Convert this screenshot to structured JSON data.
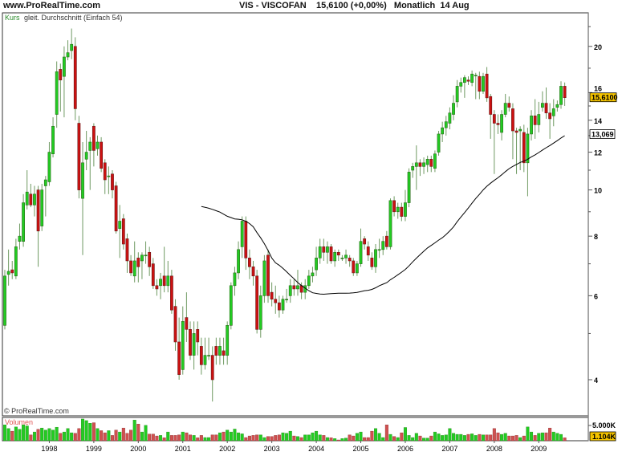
{
  "header": {
    "site": "www.ProRealTime.com",
    "instrument": "VIS - VISCOFAN",
    "price_change": "15,6100 (+0,00%)",
    "period": "Monatlich",
    "date": "14 Aug"
  },
  "legend": {
    "series": "Kurs",
    "indicator": "gleit. Durchschnitt (Einfach 54)"
  },
  "copyright": "© ProRealTime.com",
  "volume_panel": {
    "title": "Volumen",
    "scale_label": "5.000K",
    "last_badge": "1.104K"
  },
  "badges": {
    "last_price": "15,6100",
    "ma_value": "13,069"
  },
  "colors": {
    "up": "#22cc22",
    "down": "#cc1111",
    "ma": "#000000",
    "badge": "#f5c400"
  },
  "chart_data": {
    "type": "candlestick",
    "period": "monthly",
    "start": "1997-01",
    "end": "2009-08",
    "y_scale": "log",
    "ylim": [
      3.5,
      23
    ],
    "y_ticks": [
      4,
      6,
      8,
      10,
      12,
      14,
      16,
      20
    ],
    "x_tick_labels": [
      "1998",
      "1999",
      "2000",
      "2001",
      "2002",
      "2003",
      "2004",
      "2005",
      "2006",
      "2007",
      "2008",
      "2009"
    ],
    "ma_period": 54,
    "ohlc": [
      [
        5.2,
        6.8,
        5.1,
        6.6
      ],
      [
        6.65,
        7.5,
        6.3,
        6.75
      ],
      [
        6.8,
        7.1,
        6.5,
        6.7
      ],
      [
        6.6,
        7.9,
        6.5,
        7.6
      ],
      [
        7.8,
        8.5,
        7.5,
        8.0
      ],
      [
        7.8,
        9.8,
        7.6,
        9.4
      ],
      [
        9.3,
        11.0,
        9.1,
        9.9
      ],
      [
        9.8,
        10.3,
        9.2,
        9.3
      ],
      [
        9.3,
        10.2,
        8.8,
        9.8
      ],
      [
        10.0,
        10.2,
        6.9,
        8.2
      ],
      [
        8.4,
        10.3,
        8.2,
        10.0
      ],
      [
        10.2,
        10.7,
        8.8,
        10.5
      ],
      [
        10.4,
        12.6,
        10.2,
        12.0
      ],
      [
        11.9,
        14.2,
        11.7,
        13.6
      ],
      [
        14.4,
        18.6,
        13.5,
        17.7
      ],
      [
        17.9,
        18.4,
        14.6,
        17.0
      ],
      [
        17.3,
        20.0,
        14.2,
        19.0
      ],
      [
        19.0,
        20.6,
        18.7,
        19.4
      ],
      [
        19.6,
        21.8,
        18.8,
        20.2
      ],
      [
        20.0,
        20.9,
        14.0,
        14.8
      ],
      [
        13.8,
        14.3,
        9.6,
        10.0
      ],
      [
        9.6,
        12.6,
        7.3,
        11.4
      ],
      [
        11.6,
        13.3,
        11.0,
        12.0
      ],
      [
        12.1,
        12.9,
        10.0,
        12.6
      ],
      [
        13.6,
        13.8,
        11.2,
        12.1
      ],
      [
        12.2,
        13.0,
        11.8,
        12.6
      ],
      [
        12.6,
        12.9,
        10.9,
        11.1
      ],
      [
        11.4,
        11.6,
        9.8,
        10.5
      ],
      [
        10.7,
        11.2,
        9.8,
        10.7
      ],
      [
        10.8,
        11.0,
        9.6,
        10.0
      ],
      [
        10.2,
        10.4,
        8.1,
        8.2
      ],
      [
        8.3,
        9.3,
        7.2,
        8.6
      ],
      [
        8.7,
        8.9,
        7.5,
        7.7
      ],
      [
        7.9,
        8.1,
        6.7,
        7.1
      ],
      [
        7.1,
        7.3,
        6.6,
        6.7
      ],
      [
        6.6,
        7.8,
        6.4,
        7.1
      ],
      [
        7.2,
        7.4,
        6.4,
        6.9
      ],
      [
        7.1,
        7.4,
        6.5,
        7.3
      ],
      [
        7.3,
        7.8,
        7.0,
        7.3
      ],
      [
        7.4,
        7.6,
        6.6,
        6.9
      ],
      [
        7.0,
        7.2,
        6.2,
        6.3
      ],
      [
        6.3,
        6.5,
        6.0,
        6.2
      ],
      [
        6.3,
        6.7,
        5.9,
        6.5
      ],
      [
        6.6,
        7.6,
        6.1,
        6.3
      ],
      [
        6.3,
        7.1,
        6.1,
        6.6
      ],
      [
        6.6,
        6.8,
        5.5,
        5.6
      ],
      [
        5.7,
        5.9,
        4.6,
        4.8
      ],
      [
        4.8,
        5.4,
        4.0,
        4.1
      ],
      [
        4.2,
        5.7,
        4.1,
        5.3
      ],
      [
        5.4,
        6.1,
        4.8,
        5.1
      ],
      [
        5.1,
        5.3,
        4.4,
        4.5
      ],
      [
        4.5,
        5.3,
        4.2,
        5.0
      ],
      [
        5.1,
        5.3,
        4.5,
        4.8
      ],
      [
        4.7,
        4.9,
        4.1,
        4.3
      ],
      [
        4.3,
        4.9,
        4.2,
        4.5
      ],
      [
        4.5,
        4.9,
        4.4,
        4.5
      ],
      [
        4.5,
        4.7,
        3.6,
        4.0
      ],
      [
        4.7,
        4.9,
        4.3,
        4.5
      ],
      [
        4.5,
        4.9,
        4.3,
        4.7
      ],
      [
        4.6,
        4.9,
        4.3,
        4.5
      ],
      [
        4.5,
        5.3,
        4.3,
        5.2
      ],
      [
        5.2,
        6.4,
        5.1,
        6.3
      ],
      [
        6.3,
        6.9,
        6.0,
        6.7
      ],
      [
        6.7,
        7.8,
        6.5,
        7.5
      ],
      [
        7.6,
        8.8,
        7.2,
        8.6
      ],
      [
        8.6,
        8.8,
        6.8,
        7.2
      ],
      [
        7.2,
        7.5,
        6.5,
        6.9
      ],
      [
        6.9,
        7.1,
        6.3,
        6.6
      ],
      [
        6.6,
        6.8,
        5.0,
        5.1
      ],
      [
        5.1,
        6.3,
        4.9,
        6.0
      ],
      [
        6.0,
        7.3,
        5.8,
        7.1
      ],
      [
        7.3,
        7.5,
        5.8,
        6.0
      ],
      [
        6.1,
        6.4,
        5.7,
        5.9
      ],
      [
        5.9,
        6.3,
        5.5,
        5.8
      ],
      [
        5.8,
        6.0,
        5.4,
        5.6
      ],
      [
        5.6,
        6.0,
        5.5,
        5.9
      ],
      [
        5.9,
        6.2,
        5.8,
        5.9
      ],
      [
        6.0,
        6.5,
        5.8,
        6.3
      ],
      [
        6.3,
        6.5,
        6.0,
        6.2
      ],
      [
        6.2,
        6.8,
        6.0,
        6.3
      ],
      [
        6.3,
        6.4,
        5.9,
        6.1
      ],
      [
        6.1,
        6.5,
        5.9,
        6.3
      ],
      [
        6.3,
        6.8,
        6.2,
        6.6
      ],
      [
        6.6,
        6.9,
        6.4,
        6.7
      ],
      [
        6.8,
        7.6,
        6.6,
        7.2
      ],
      [
        7.2,
        7.9,
        7.0,
        7.6
      ],
      [
        7.6,
        7.9,
        7.1,
        7.4
      ],
      [
        7.4,
        7.8,
        7.0,
        7.6
      ],
      [
        7.6,
        7.7,
        7.0,
        7.1
      ],
      [
        7.1,
        7.5,
        6.9,
        7.4
      ],
      [
        7.4,
        7.5,
        7.1,
        7.3
      ],
      [
        7.2,
        7.3,
        7.1,
        7.2
      ],
      [
        7.2,
        7.5,
        7.0,
        7.3
      ],
      [
        7.2,
        7.3,
        6.9,
        7.1
      ],
      [
        7.1,
        7.2,
        6.6,
        6.7
      ],
      [
        6.7,
        7.1,
        6.6,
        7.0
      ],
      [
        7.0,
        8.3,
        6.9,
        7.8
      ],
      [
        7.9,
        8.0,
        7.5,
        7.7
      ],
      [
        7.6,
        7.8,
        7.1,
        7.3
      ],
      [
        7.2,
        7.4,
        6.8,
        6.9
      ],
      [
        6.9,
        7.7,
        6.7,
        7.5
      ],
      [
        7.5,
        7.9,
        7.2,
        7.5
      ],
      [
        7.5,
        8.0,
        7.3,
        7.8
      ],
      [
        8.0,
        8.2,
        7.5,
        7.6
      ],
      [
        7.6,
        9.6,
        7.5,
        9.5
      ],
      [
        9.5,
        9.7,
        8.8,
        9.0
      ],
      [
        9.0,
        9.4,
        8.7,
        9.2
      ],
      [
        9.2,
        9.4,
        8.6,
        8.8
      ],
      [
        8.8,
        10.0,
        8.6,
        9.4
      ],
      [
        9.4,
        11.1,
        9.2,
        10.9
      ],
      [
        11.0,
        11.4,
        10.6,
        11.2
      ],
      [
        11.2,
        12.4,
        10.0,
        11.4
      ],
      [
        11.4,
        11.6,
        10.7,
        11.2
      ],
      [
        11.2,
        11.7,
        10.8,
        11.4
      ],
      [
        11.3,
        11.8,
        10.9,
        11.6
      ],
      [
        11.6,
        11.8,
        10.9,
        11.2
      ],
      [
        11.1,
        12.1,
        10.9,
        11.9
      ],
      [
        12.0,
        13.3,
        11.8,
        13.1
      ],
      [
        13.1,
        13.9,
        12.6,
        13.5
      ],
      [
        13.5,
        14.3,
        13.0,
        13.9
      ],
      [
        13.8,
        14.9,
        13.4,
        14.5
      ],
      [
        14.4,
        15.8,
        14.0,
        15.2
      ],
      [
        15.3,
        17.0,
        14.9,
        16.5
      ],
      [
        16.5,
        17.2,
        16.0,
        16.8
      ],
      [
        16.8,
        17.4,
        15.6,
        17.2
      ],
      [
        17.0,
        17.3,
        16.6,
        16.9
      ],
      [
        16.8,
        17.8,
        16.5,
        17.5
      ],
      [
        17.4,
        17.6,
        15.5,
        17.4
      ],
      [
        17.3,
        17.7,
        15.5,
        16.1
      ],
      [
        16.1,
        17.6,
        15.9,
        17.3
      ],
      [
        17.5,
        18.1,
        15.3,
        15.6
      ],
      [
        15.7,
        15.9,
        12.8,
        14.4
      ],
      [
        14.4,
        14.7,
        10.8,
        13.8
      ],
      [
        13.8,
        14.4,
        13.1,
        13.7
      ],
      [
        13.2,
        14.7,
        12.7,
        14.4
      ],
      [
        14.4,
        15.9,
        14.2,
        15.2
      ],
      [
        15.2,
        15.7,
        14.6,
        14.9
      ],
      [
        14.8,
        15.2,
        11.6,
        13.3
      ],
      [
        13.3,
        13.5,
        10.8,
        13.2
      ],
      [
        13.3,
        13.6,
        11.0,
        13.4
      ],
      [
        13.2,
        13.7,
        10.9,
        11.4
      ],
      [
        11.4,
        13.5,
        9.7,
        13.1
      ],
      [
        13.1,
        14.7,
        12.7,
        14.3
      ],
      [
        14.3,
        15.5,
        12.8,
        13.7
      ],
      [
        13.7,
        15.3,
        13.2,
        14.4
      ],
      [
        14.9,
        16.1,
        14.6,
        15.2
      ],
      [
        15.2,
        16.4,
        14.1,
        14.5
      ],
      [
        14.5,
        15.2,
        12.8,
        14.1
      ],
      [
        14.3,
        15.5,
        13.6,
        14.8
      ],
      [
        14.9,
        15.4,
        14.6,
        15.1
      ],
      [
        15.1,
        16.9,
        14.8,
        16.5
      ],
      [
        16.5,
        16.8,
        15.0,
        15.61
      ]
    ],
    "volume_k": [
      6000,
      4600,
      3600,
      5200,
      4300,
      6000,
      5600,
      2200,
      3300,
      4300,
      4800,
      4000,
      4600,
      4000,
      5100,
      2800,
      3300,
      4600,
      3000,
      2800,
      4600,
      8200,
      7600,
      6600,
      6800,
      4600,
      3800,
      3000,
      3800,
      2000,
      4000,
      3300,
      4800,
      2800,
      4000,
      7800,
      6300,
      3300,
      5800,
      2500,
      2500,
      1800,
      2000,
      1100,
      3300,
      2000,
      2000,
      2200,
      3300,
      3000,
      2200,
      2000,
      1100,
      2000,
      1200,
      1200,
      2200,
      2200,
      3000,
      3300,
      4000,
      3300,
      4400,
      3000,
      2600,
      1200,
      1800,
      2000,
      2200,
      2200,
      1200,
      1600,
      1600,
      2000,
      2200,
      3000,
      2800,
      3600,
      1800,
      1600,
      1200,
      2200,
      2200,
      3000,
      3600,
      2200,
      2000,
      1200,
      1100,
      800,
      300,
      800,
      1000,
      2200,
      1800,
      2800,
      3300,
      1200,
      1200,
      3600,
      4600,
      2800,
      1200,
      6000,
      2400,
      1600,
      1200,
      3000,
      5000,
      2000,
      1200,
      2800,
      1800,
      1000,
      1000,
      1800,
      3300,
      2600,
      2000,
      2200,
      4600,
      2800,
      2400,
      2400,
      2000,
      2400,
      2600,
      2000,
      2400,
      2200,
      2200,
      2200,
      4600,
      3000,
      2400,
      2800,
      1800,
      1800,
      2000,
      1200,
      1800,
      5200,
      3300,
      2000,
      2800,
      3000,
      3000,
      4800,
      3300,
      2800,
      2400,
      1104
    ]
  }
}
